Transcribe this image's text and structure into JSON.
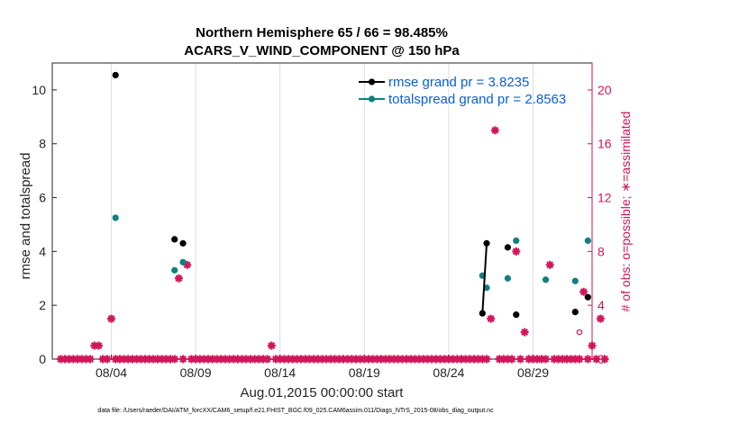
{
  "chart_data": {
    "type": "scatter",
    "title": [
      "Northern Hemisphere 65 / 66 = 98.485%",
      "ACARS_V_WIND_COMPONENT @ 150 hPa"
    ],
    "xlabel": "Aug.01,2015 00:00:00 start",
    "ylabel_left": "rmse and totalspread",
    "ylabel_right": "# of obs: o=possible; ∗=assimilated",
    "x_tick_labels": [
      "08/04",
      "08/09",
      "08/14",
      "08/19",
      "08/24",
      "08/29"
    ],
    "x_ticks": [
      4,
      9,
      14,
      19,
      24,
      29
    ],
    "xlim": [
      0.5,
      32.5
    ],
    "ylim_left": [
      0,
      11
    ],
    "ylim_right": [
      0,
      22
    ],
    "y_ticks_left": [
      0,
      2,
      4,
      6,
      8,
      10
    ],
    "y_ticks_right": [
      0,
      4,
      8,
      12,
      16,
      20
    ],
    "legend": [
      {
        "label": "rmse grand pr = 3.8235",
        "color": "#000000"
      },
      {
        "label": "totalspread grand pr = 2.8563",
        "color": "#0f7f80"
      }
    ],
    "series": [
      {
        "name": "rmse",
        "color": "#000000",
        "points": [
          [
            4.25,
            10.55
          ],
          [
            7.75,
            4.45
          ],
          [
            8.25,
            4.3
          ],
          [
            26.0,
            1.7
          ],
          [
            26.25,
            4.3
          ],
          [
            27.5,
            4.15
          ],
          [
            28.0,
            1.65
          ],
          [
            31.5,
            1.75
          ],
          [
            32.25,
            2.3
          ]
        ],
        "segments": [
          [
            26.0,
            1.7,
            26.25,
            4.3
          ]
        ]
      },
      {
        "name": "totalspread",
        "color": "#0f7f80",
        "points": [
          [
            4.25,
            5.25
          ],
          [
            7.75,
            3.3
          ],
          [
            8.25,
            3.6
          ],
          [
            26.0,
            3.1
          ],
          [
            26.25,
            2.65
          ],
          [
            27.5,
            3.0
          ],
          [
            28.0,
            4.4
          ],
          [
            29.75,
            2.95
          ],
          [
            31.5,
            2.9
          ],
          [
            32.25,
            4.4
          ]
        ]
      },
      {
        "name": "obs_assimilated",
        "color": "#d1165a",
        "counts": [
          0,
          0,
          0,
          0,
          0,
          0,
          0,
          0,
          1,
          1,
          0,
          0,
          3,
          0,
          0,
          0,
          0,
          0,
          0,
          0,
          0,
          0,
          0,
          0,
          0,
          0,
          0,
          0,
          6,
          0,
          7,
          0,
          0,
          0,
          0,
          0,
          0,
          0,
          0,
          0,
          0,
          0,
          0,
          0,
          0,
          0,
          0,
          0,
          0,
          0,
          1,
          0,
          0,
          0,
          0,
          0,
          0,
          0,
          0,
          0,
          0,
          0,
          0,
          0,
          0,
          0,
          0,
          0,
          0,
          0,
          0,
          0,
          0,
          0,
          0,
          0,
          0,
          0,
          0,
          0,
          0,
          0,
          0,
          0,
          0,
          0,
          0,
          0,
          0,
          0,
          0,
          0,
          0,
          0,
          0,
          0,
          0,
          0,
          0,
          0,
          0,
          0,
          3,
          17,
          0,
          0,
          0,
          0,
          8,
          0,
          2,
          0,
          0,
          0,
          0,
          0,
          7,
          0,
          0,
          0,
          0,
          0,
          0,
          0,
          5,
          0,
          1,
          0,
          3,
          0
        ]
      },
      {
        "name": "obs_possible",
        "color": "#d1165a",
        "points": [
          [
            31.75,
            2
          ]
        ]
      }
    ]
  },
  "footer": "data file: /Users/raeder/DAI/ATM_forcXX/CAM6_setup/f.e21.FHIST_BGC.f09_025.CAM6assim.011/Diags_NTrS_2015-08/obs_diag_output.nc"
}
